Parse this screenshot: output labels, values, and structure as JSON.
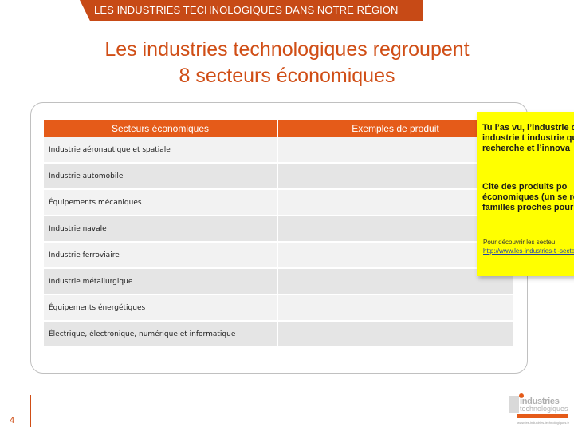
{
  "header": {
    "banner": "LES INDUSTRIES TECHNOLOGIQUES DANS NOTRE RÉGION"
  },
  "title": {
    "line1": "Les industries technologiques regroupent",
    "line2": "8 secteurs économiques"
  },
  "table": {
    "headers": [
      "Secteurs économiques",
      "Exemples de produit"
    ],
    "rows": [
      "Industrie aéronautique et spatiale",
      "Industrie automobile",
      "Équipements mécaniques",
      "Industrie navale",
      "Industrie ferroviaire",
      "Industrie métallurgique",
      "Équipements énergétiques",
      "Électrique, électronique, numérique et informatique"
    ]
  },
  "note": {
    "paragraph1": "Tu l’as vu, l’industrie ce qu’une industrie t industrie qui repose recherche et l’innova",
    "paragraph2": "Cite des produits po économiques (un se regroupe des familles proches pour être co",
    "paragraph3_text": "Pour découvrir les secteu",
    "paragraph3_link": "http://www.les-industries-t -secteurs/"
  },
  "footer": {
    "page_number": "4",
    "logo_line1": "industries",
    "logo_line2": "technologiques",
    "logo_sub": "www.les-industries-technologiques.fr"
  },
  "colors": {
    "accent": "#e55b19",
    "title": "#d04e16",
    "banner": "#c74a16",
    "note_bg": "#ffff00"
  }
}
